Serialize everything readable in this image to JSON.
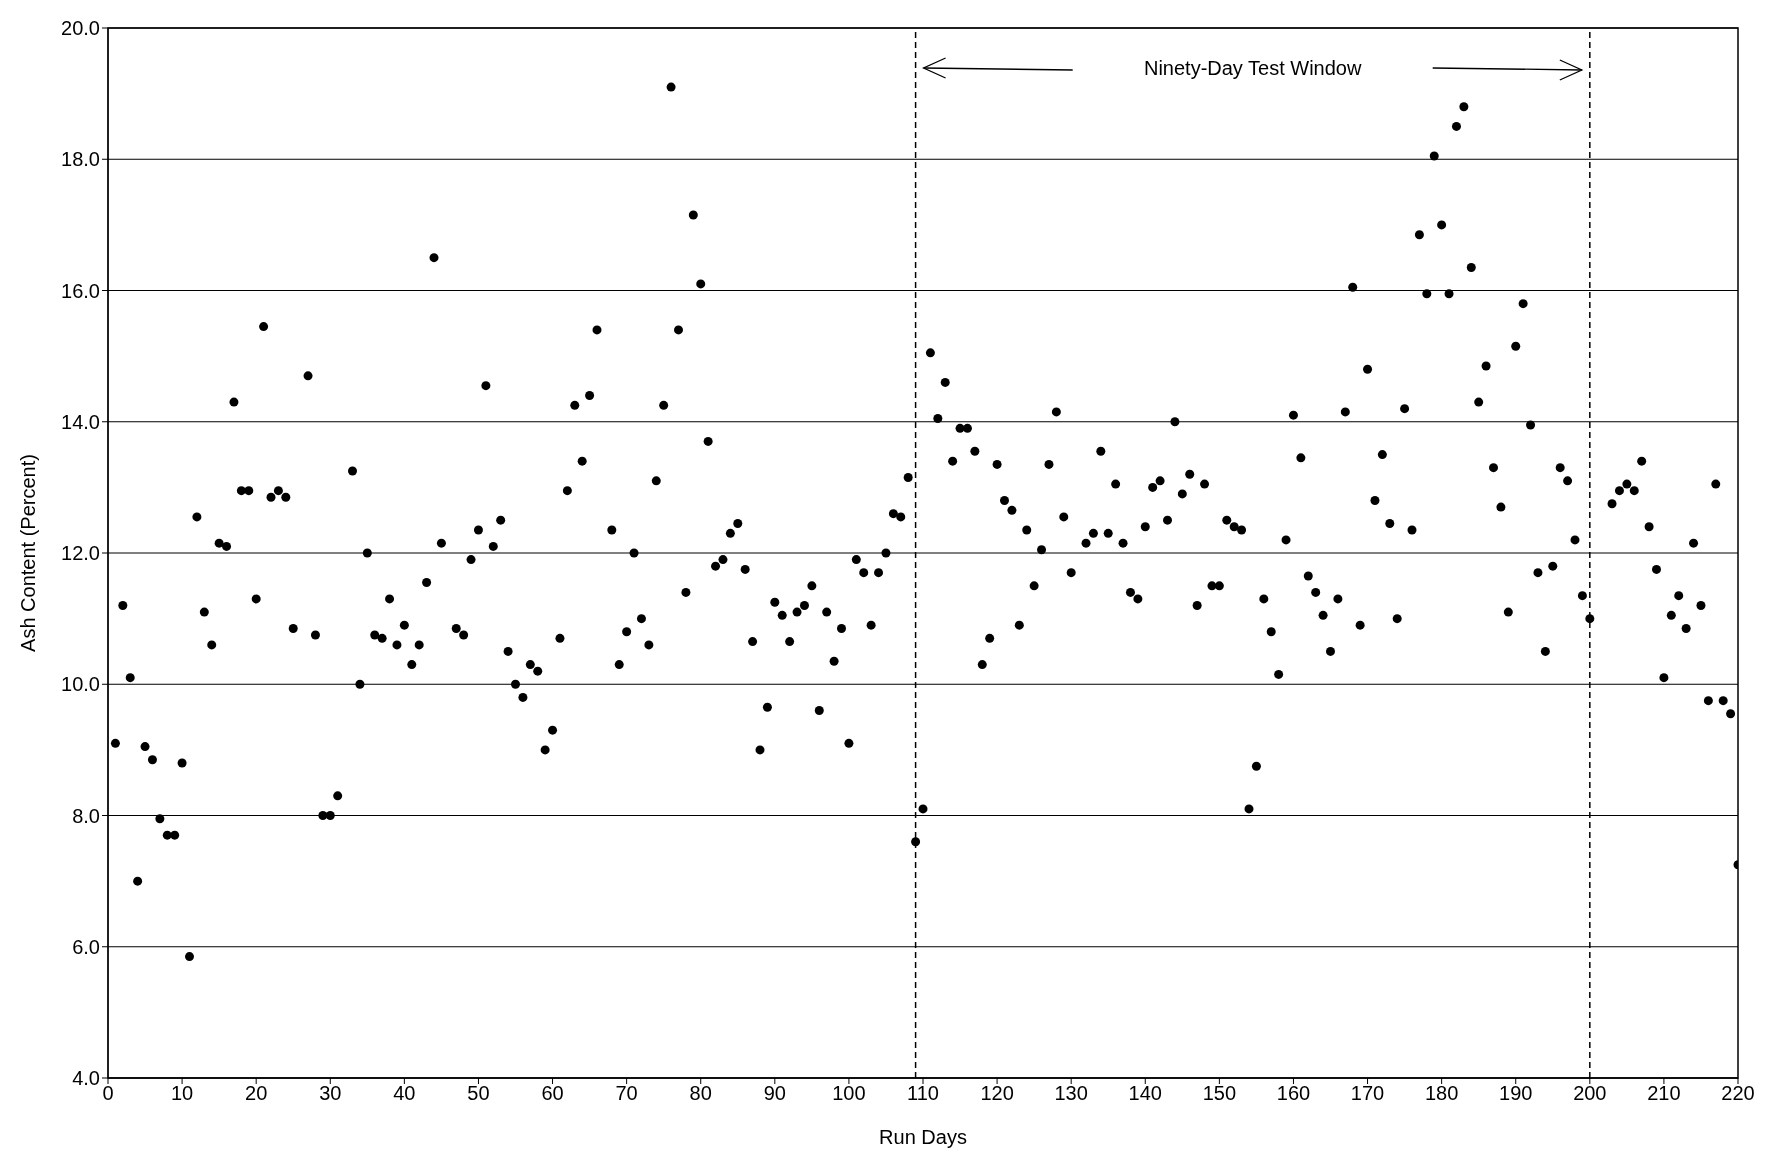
{
  "chart_data": {
    "type": "scatter",
    "xlabel": "Run Days",
    "ylabel": "Ash Content (Percent)",
    "annotations": [
      "Ninety-Day Test Window"
    ],
    "x": [
      1,
      2,
      3,
      4,
      5,
      6,
      7,
      8,
      9,
      10,
      11,
      12,
      13,
      14,
      15,
      16,
      17,
      18,
      19,
      20,
      21,
      22,
      23,
      24,
      25,
      27,
      28,
      29,
      30,
      31,
      33,
      34,
      35,
      36,
      37,
      38,
      39,
      40,
      41,
      42,
      43,
      44,
      45,
      47,
      48,
      49,
      50,
      51,
      52,
      53,
      54,
      55,
      56,
      57,
      58,
      59,
      60,
      61,
      62,
      63,
      64,
      65,
      66,
      68,
      69,
      70,
      71,
      72,
      73,
      74,
      75,
      76,
      77,
      78,
      79,
      80,
      81,
      82,
      83,
      84,
      85,
      86,
      87,
      88,
      89,
      90,
      91,
      92,
      93,
      94,
      95,
      96,
      97,
      98,
      99,
      100,
      101,
      102,
      103,
      104,
      105,
      106,
      107,
      108,
      109,
      110,
      111,
      112,
      113,
      114,
      115,
      116,
      117,
      118,
      119,
      120,
      121,
      122,
      123,
      124,
      125,
      126,
      127,
      128,
      129,
      130,
      132,
      133,
      134,
      135,
      136,
      137,
      138,
      139,
      140,
      141,
      142,
      143,
      144,
      145,
      146,
      147,
      148,
      149,
      150,
      151,
      152,
      153,
      154,
      155,
      156,
      157,
      158,
      159,
      160,
      161,
      162,
      163,
      164,
      165,
      166,
      167,
      168,
      169,
      170,
      171,
      172,
      173,
      174,
      175,
      176,
      177,
      178,
      179,
      180,
      181,
      182,
      183,
      184,
      185,
      186,
      187,
      188,
      189,
      190,
      191,
      192,
      193,
      194,
      195,
      196,
      197,
      198,
      199,
      200,
      203,
      204,
      205,
      206,
      207,
      208,
      209,
      210,
      211,
      212,
      213,
      214,
      215,
      216,
      217,
      218,
      219,
      220
    ],
    "series": [
      {
        "color": "#000000",
        "values": [
          9.1,
          11.2,
          10.1,
          7.0,
          9.05,
          8.85,
          7.95,
          7.7,
          7.7,
          8.8,
          5.85,
          12.55,
          11.1,
          10.6,
          12.15,
          12.1,
          14.3,
          12.95,
          12.95,
          11.3,
          15.45,
          12.85,
          12.95,
          12.85,
          10.85,
          14.7,
          10.75,
          8.0,
          8.0,
          8.3,
          13.25,
          10.0,
          12.0,
          10.75,
          10.7,
          11.3,
          10.6,
          10.9,
          10.3,
          10.6,
          11.55,
          16.5,
          12.15,
          10.85,
          10.75,
          11.9,
          12.35,
          14.55,
          12.1,
          12.5,
          10.5,
          10.0,
          9.8,
          10.3,
          10.2,
          9.0,
          9.3,
          10.7,
          12.95,
          14.25,
          13.4,
          14.4,
          15.4,
          12.35,
          10.3,
          10.8,
          12.0,
          11.0,
          10.6,
          13.1,
          14.25,
          19.1,
          15.4,
          11.4,
          17.15,
          16.1,
          13.7,
          11.8,
          11.9,
          12.3,
          12.45,
          11.75,
          10.65,
          9.0,
          9.65,
          11.25,
          11.05,
          10.65,
          11.1,
          11.2,
          11.5,
          9.6,
          11.1,
          10.35,
          10.85,
          9.1,
          11.9,
          11.7,
          10.9,
          11.7,
          12.0,
          12.6,
          12.55,
          13.15,
          7.6,
          8.1,
          15.05,
          14.05,
          14.6,
          13.4,
          13.9,
          13.9,
          13.55,
          10.3,
          10.7,
          13.35,
          12.8,
          12.65,
          10.9,
          12.35,
          11.5,
          12.05,
          13.35,
          14.15,
          12.55,
          11.7,
          12.15,
          12.3,
          13.55,
          12.3,
          13.05,
          12.15,
          11.4,
          11.3,
          12.4,
          13.0,
          13.1,
          12.5,
          14.0,
          12.9,
          13.2,
          11.2,
          13.05,
          11.5,
          11.5,
          12.5,
          12.4,
          12.35,
          8.1,
          8.75,
          11.3,
          10.8,
          10.15,
          12.2,
          14.1,
          13.45,
          11.65,
          11.4,
          11.05,
          10.5,
          11.3,
          14.15,
          16.05,
          10.9,
          14.8,
          12.8,
          13.5,
          12.45,
          11.0,
          14.2,
          12.35,
          16.85,
          15.95,
          18.05,
          17.0,
          15.95,
          18.5,
          18.8,
          16.35,
          14.3,
          14.85,
          13.3,
          12.7,
          11.1,
          15.15,
          15.8,
          13.95,
          11.7,
          10.5,
          11.8,
          13.3,
          13.1,
          12.2,
          11.35,
          11.0,
          12.75,
          12.95,
          13.05,
          12.95,
          13.4,
          12.4,
          11.75,
          10.1,
          11.05,
          11.35,
          10.85,
          12.15,
          11.2,
          9.75,
          13.05,
          9.75,
          9.55,
          7.25
        ]
      }
    ],
    "xlim": [
      0,
      220
    ],
    "xticks": [
      0,
      10,
      20,
      30,
      40,
      50,
      60,
      70,
      80,
      90,
      100,
      110,
      120,
      130,
      140,
      150,
      160,
      170,
      180,
      190,
      200,
      210,
      220
    ],
    "ylim": [
      4,
      20
    ],
    "yticks": [
      {
        "value": 4,
        "label": "4.0"
      },
      {
        "value": 6,
        "label": "6.0"
      },
      {
        "value": 8,
        "label": "8.0"
      },
      {
        "value": 10,
        "label": "10.0"
      },
      {
        "value": 12,
        "label": "12.0"
      },
      {
        "value": 14,
        "label": "14.0"
      },
      {
        "value": 16,
        "label": "16.0"
      },
      {
        "value": 18,
        "label": "18.0"
      },
      {
        "value": 20,
        "label": "20.0"
      }
    ],
    "ref_lines": [
      {
        "axis": "x",
        "value": 109,
        "color": "#000000",
        "line_style": "dashed"
      },
      {
        "axis": "x",
        "value": 200,
        "color": "#000000",
        "line_style": "dashed"
      }
    ],
    "grid": "y",
    "legend": false,
    "marker": "circle"
  }
}
